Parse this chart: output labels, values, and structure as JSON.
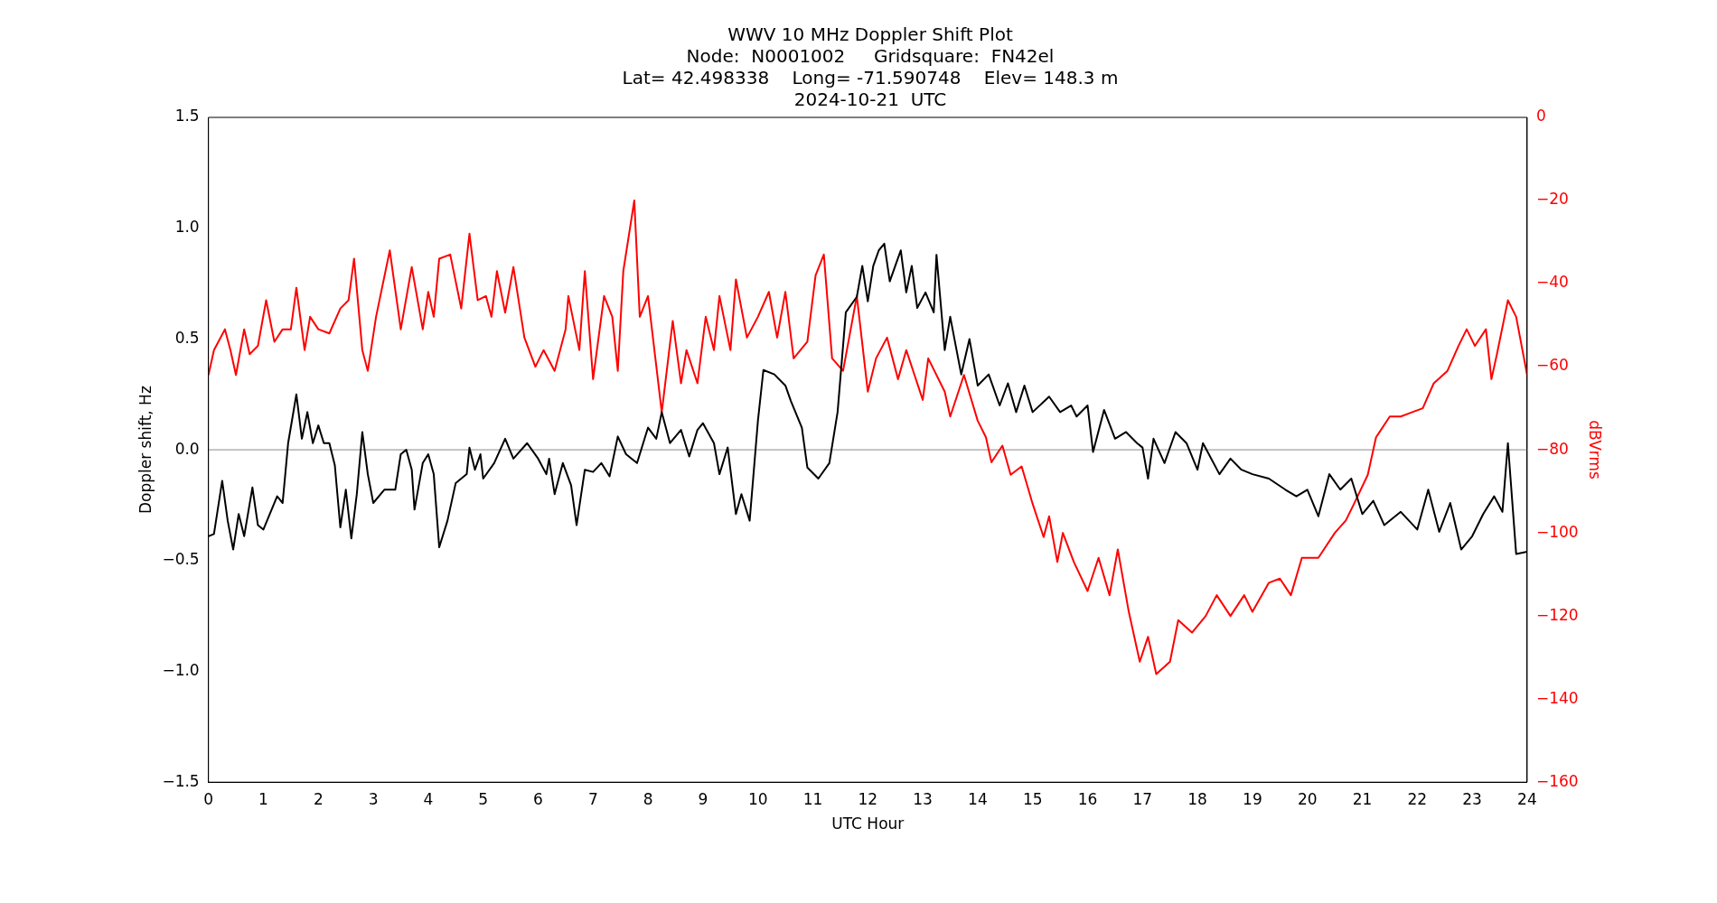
{
  "chart_data": {
    "type": "line",
    "title": "WWV 10 MHz Doppler Shift Plot\nNode:  N0001002     Gridsquare:  FN42el\nLat= 42.498338    Long= -71.590748    Elev= 148.3 m\n2024-10-21  UTC",
    "xlabel": "UTC Hour",
    "ylabel": "Doppler shift, Hz",
    "y2label": "dBVrms",
    "xlim": [
      0,
      24
    ],
    "xticks": [
      0,
      1,
      2,
      3,
      4,
      5,
      6,
      7,
      8,
      9,
      10,
      11,
      12,
      13,
      14,
      15,
      16,
      17,
      18,
      19,
      20,
      21,
      22,
      23,
      24
    ],
    "ylim": [
      -1.5,
      1.5
    ],
    "yticks": [
      {
        "value": -1.5,
        "label": "−1.5"
      },
      {
        "value": -1,
        "label": "−1.0"
      },
      {
        "value": -0.5,
        "label": "−0.5"
      },
      {
        "value": 0,
        "label": "0.0"
      },
      0.5,
      {
        "value": 1,
        "label": "1.0"
      },
      1.5
    ],
    "y2lim": [
      -160,
      0
    ],
    "y2ticks": [
      {
        "value": -160,
        "label": "−160"
      },
      {
        "value": -140,
        "label": "−140"
      },
      {
        "value": -120,
        "label": "−120"
      },
      {
        "value": -100,
        "label": "−100"
      },
      {
        "value": -80,
        "label": "−80"
      },
      {
        "value": -60,
        "label": "−60"
      },
      {
        "value": -40,
        "label": "−40"
      },
      {
        "value": -20,
        "label": "−20"
      },
      0
    ],
    "grid": false,
    "legend": false,
    "marker": "none",
    "line_style": "solid",
    "ref_lines": [
      {
        "axis": "y",
        "value": 0,
        "color": "#a0a0a0"
      }
    ],
    "series": [
      {
        "color": "#000000",
        "x": [
          0,
          0.1,
          0.25,
          0.35,
          0.45,
          0.55,
          0.65,
          0.8,
          0.9,
          1,
          1.1,
          1.25,
          1.35,
          1.45,
          1.6,
          1.7,
          1.8,
          1.9,
          2,
          2.1,
          2.2,
          2.3,
          2.4,
          2.5,
          2.6,
          2.7,
          2.8,
          2.9,
          3,
          3.2,
          3.4,
          3.5,
          3.6,
          3.7,
          3.75,
          3.9,
          4,
          4.1,
          4.2,
          4.35,
          4.5,
          4.7,
          4.75,
          4.85,
          4.95,
          5,
          5.2,
          5.4,
          5.55,
          5.8,
          6,
          6.15,
          6.2,
          6.3,
          6.45,
          6.6,
          6.7,
          6.85,
          7,
          7.15,
          7.3,
          7.45,
          7.6,
          7.8,
          8,
          8.15,
          8.25,
          8.4,
          8.6,
          8.75,
          8.9,
          9,
          9.2,
          9.3,
          9.45,
          9.6,
          9.7,
          9.85,
          10,
          10.1,
          10.3,
          10.5,
          10.6,
          10.8,
          10.9,
          11.1,
          11.3,
          11.45,
          11.6,
          11.8,
          11.9,
          12,
          12.1,
          12.2,
          12.3,
          12.4,
          12.5,
          12.6,
          12.7,
          12.8,
          12.9,
          13.05,
          13.2,
          13.25,
          13.4,
          13.5,
          13.7,
          13.85,
          14,
          14.2,
          14.4,
          14.55,
          14.7,
          14.85,
          15,
          15.3,
          15.5,
          15.7,
          15.8,
          16,
          16.1,
          16.3,
          16.5,
          16.7,
          16.9,
          17,
          17.1,
          17.2,
          17.4,
          17.6,
          17.8,
          18,
          18.1,
          18.4,
          18.6,
          18.8,
          19,
          19.3,
          19.6,
          19.8,
          20,
          20.2,
          20.4,
          20.6,
          20.8,
          21,
          21.2,
          21.4,
          21.7,
          22,
          22.2,
          22.4,
          22.6,
          22.8,
          23,
          23.2,
          23.4,
          23.55,
          23.65,
          23.8,
          24
        ],
        "values": [
          -0.39,
          -0.38,
          -0.14,
          -0.32,
          -0.45,
          -0.29,
          -0.39,
          -0.17,
          -0.34,
          -0.36,
          -0.3,
          -0.21,
          -0.24,
          0.03,
          0.25,
          0.05,
          0.17,
          0.03,
          0.11,
          0.03,
          0.03,
          -0.07,
          -0.35,
          -0.18,
          -0.4,
          -0.2,
          0.08,
          -0.11,
          -0.24,
          -0.18,
          -0.18,
          -0.02,
          0,
          -0.09,
          -0.27,
          -0.06,
          -0.02,
          -0.11,
          -0.44,
          -0.32,
          -0.15,
          -0.11,
          0.01,
          -0.09,
          -0.02,
          -0.13,
          -0.06,
          0.05,
          -0.04,
          0.03,
          -0.04,
          -0.11,
          -0.04,
          -0.2,
          -0.06,
          -0.16,
          -0.34,
          -0.09,
          -0.1,
          -0.06,
          -0.12,
          0.06,
          -0.02,
          -0.06,
          0.1,
          0.05,
          0.17,
          0.03,
          0.09,
          -0.03,
          0.09,
          0.12,
          0.03,
          -0.11,
          0.01,
          -0.29,
          -0.2,
          -0.32,
          0.13,
          0.36,
          0.34,
          0.29,
          0.22,
          0.1,
          -0.08,
          -0.13,
          -0.06,
          0.17,
          0.62,
          0.69,
          0.83,
          0.67,
          0.83,
          0.9,
          0.93,
          0.76,
          0.83,
          0.9,
          0.71,
          0.83,
          0.64,
          0.71,
          0.62,
          0.88,
          0.45,
          0.6,
          0.34,
          0.5,
          0.29,
          0.34,
          0.2,
          0.3,
          0.17,
          0.29,
          0.17,
          0.24,
          0.17,
          0.2,
          0.15,
          0.2,
          -0.01,
          0.18,
          0.05,
          0.08,
          0.03,
          0.01,
          -0.13,
          0.05,
          -0.06,
          0.08,
          0.03,
          -0.09,
          0.03,
          -0.11,
          -0.04,
          -0.09,
          -0.11,
          -0.13,
          -0.18,
          -0.21,
          -0.18,
          -0.3,
          -0.11,
          -0.18,
          -0.13,
          -0.29,
          -0.23,
          -0.34,
          -0.28,
          -0.36,
          -0.18,
          -0.37,
          -0.24,
          -0.45,
          -0.39,
          -0.29,
          -0.21,
          -0.28,
          0.03,
          -0.47,
          -0.46
        ]
      },
      {
        "color": "#ff0000",
        "axis": "y2",
        "x": [
          0,
          0.1,
          0.3,
          0.4,
          0.5,
          0.65,
          0.75,
          0.9,
          1.05,
          1.2,
          1.35,
          1.5,
          1.6,
          1.75,
          1.85,
          2,
          2.2,
          2.4,
          2.55,
          2.65,
          2.8,
          2.9,
          3.05,
          3.3,
          3.5,
          3.7,
          3.9,
          4,
          4.1,
          4.2,
          4.4,
          4.6,
          4.75,
          4.9,
          5.05,
          5.15,
          5.25,
          5.4,
          5.55,
          5.75,
          5.95,
          6.1,
          6.3,
          6.5,
          6.55,
          6.75,
          6.85,
          7,
          7.2,
          7.35,
          7.45,
          7.55,
          7.75,
          7.85,
          8,
          8.25,
          8.45,
          8.6,
          8.7,
          8.9,
          9.05,
          9.2,
          9.3,
          9.5,
          9.6,
          9.8,
          10,
          10.2,
          10.35,
          10.5,
          10.65,
          10.9,
          11.05,
          11.2,
          11.35,
          11.55,
          11.8,
          12,
          12.15,
          12.35,
          12.55,
          12.7,
          12.85,
          13,
          13.1,
          13.4,
          13.5,
          13.75,
          14,
          14.15,
          14.25,
          14.45,
          14.6,
          14.8,
          15,
          15.2,
          15.3,
          15.45,
          15.55,
          15.75,
          16,
          16.2,
          16.4,
          16.55,
          16.75,
          16.95,
          17.1,
          17.25,
          17.5,
          17.65,
          17.9,
          18.15,
          18.35,
          18.6,
          18.85,
          19,
          19.3,
          19.5,
          19.7,
          19.9,
          20.2,
          20.5,
          20.7,
          20.85,
          21.1,
          21.25,
          21.5,
          21.7,
          21.9,
          22.1,
          22.3,
          22.55,
          22.75,
          22.9,
          23.05,
          23.25,
          23.35,
          23.45,
          23.65,
          23.8,
          24
        ],
        "values": [
          -62,
          -56,
          -51,
          -56,
          -62,
          -51,
          -57,
          -55,
          -44,
          -54,
          -51,
          -51,
          -41,
          -56,
          -48,
          -51,
          -52,
          -46,
          -44,
          -34,
          -56,
          -61,
          -48,
          -32,
          -51,
          -36,
          -51,
          -42,
          -48,
          -34,
          -33,
          -46,
          -28,
          -44,
          -43,
          -48,
          -37,
          -47,
          -36,
          -53,
          -60,
          -56,
          -61,
          -51,
          -43,
          -56,
          -37,
          -63,
          -43,
          -48,
          -61,
          -37,
          -20,
          -48,
          -43,
          -71,
          -49,
          -64,
          -56,
          -64,
          -48,
          -56,
          -43,
          -56,
          -39,
          -53,
          -48,
          -42,
          -53,
          -42,
          -58,
          -54,
          -38,
          -33,
          -58,
          -61,
          -43,
          -66,
          -58,
          -53,
          -63,
          -56,
          -62,
          -68,
          -58,
          -66,
          -72,
          -62,
          -73,
          -77,
          -83,
          -79,
          -86,
          -84,
          -93,
          -101,
          -96,
          -107,
          -100,
          -107,
          -114,
          -106,
          -115,
          -104,
          -119,
          -131,
          -125,
          -134,
          -131,
          -121,
          -124,
          -120,
          -115,
          -120,
          -115,
          -119,
          -112,
          -111,
          -115,
          -106,
          -106,
          -100,
          -97,
          -93,
          -86,
          -77,
          -72,
          -72,
          -71,
          -70,
          -64,
          -61,
          -55,
          -51,
          -55,
          -51,
          -63,
          -57,
          -44,
          -48,
          -62
        ]
      }
    ]
  }
}
